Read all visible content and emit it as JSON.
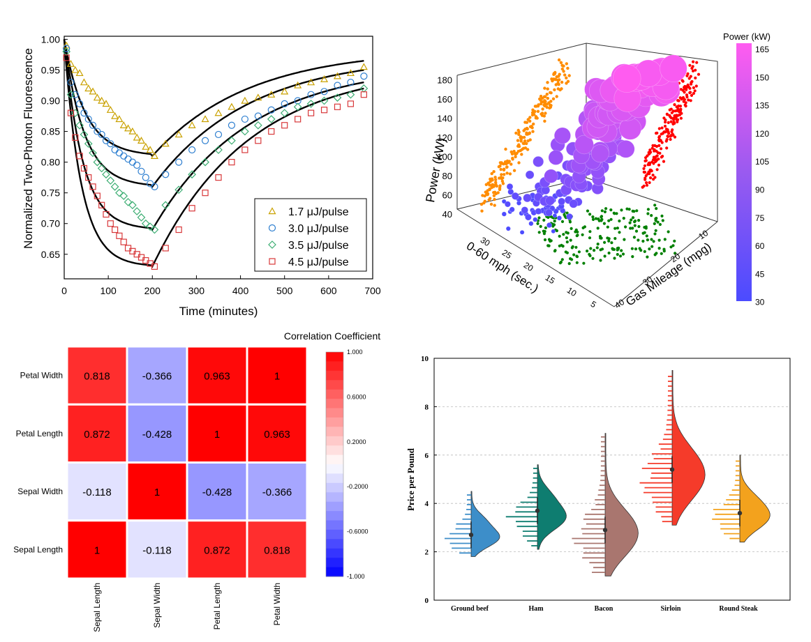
{
  "chart_data": [
    {
      "type": "line",
      "xlabel": "Time (minutes)",
      "ylabel": "Normalized Two-Photon Fluorescence",
      "xlim": [
        0,
        700
      ],
      "ylim": [
        0.61,
        1.005
      ],
      "xticks": [
        "0",
        "100",
        "200",
        "300",
        "400",
        "500",
        "600",
        "700"
      ],
      "yticks": [
        "0.65",
        "0.70",
        "0.75",
        "0.80",
        "0.85",
        "0.90",
        "0.95",
        "1.00"
      ],
      "legend_position": "bottom-right",
      "series": [
        {
          "name": "1.7 μJ/pulse",
          "marker": "triangle",
          "color": "#c9a100",
          "x": [
            5,
            15,
            25,
            35,
            45,
            55,
            65,
            75,
            85,
            95,
            105,
            115,
            125,
            135,
            145,
            155,
            165,
            175,
            185,
            195,
            205,
            230,
            260,
            290,
            320,
            350,
            380,
            410,
            440,
            470,
            500,
            530,
            560,
            590,
            620,
            650,
            680
          ],
          "y": [
            0.99,
            0.96,
            0.95,
            0.945,
            0.93,
            0.92,
            0.915,
            0.905,
            0.9,
            0.895,
            0.885,
            0.875,
            0.87,
            0.86,
            0.855,
            0.85,
            0.84,
            0.835,
            0.825,
            0.82,
            0.81,
            0.83,
            0.845,
            0.86,
            0.87,
            0.88,
            0.89,
            0.9,
            0.905,
            0.91,
            0.915,
            0.925,
            0.93,
            0.935,
            0.94,
            0.945,
            0.955
          ]
        },
        {
          "name": "3.0 μJ/pulse",
          "marker": "circle",
          "color": "#2e7fd0",
          "x": [
            5,
            15,
            25,
            35,
            45,
            55,
            65,
            75,
            85,
            95,
            105,
            115,
            125,
            135,
            145,
            155,
            165,
            175,
            185,
            195,
            205,
            230,
            260,
            290,
            320,
            350,
            380,
            410,
            440,
            470,
            500,
            530,
            560,
            590,
            620,
            650,
            680
          ],
          "y": [
            0.985,
            0.93,
            0.91,
            0.895,
            0.88,
            0.87,
            0.86,
            0.85,
            0.845,
            0.835,
            0.83,
            0.82,
            0.815,
            0.81,
            0.805,
            0.8,
            0.795,
            0.785,
            0.775,
            0.765,
            0.76,
            0.78,
            0.8,
            0.82,
            0.835,
            0.845,
            0.86,
            0.87,
            0.875,
            0.885,
            0.895,
            0.9,
            0.91,
            0.915,
            0.925,
            0.93,
            0.94
          ]
        },
        {
          "name": "3.5 μJ/pulse",
          "marker": "diamond",
          "color": "#3dae73",
          "x": [
            5,
            15,
            25,
            35,
            45,
            55,
            65,
            75,
            85,
            95,
            105,
            115,
            125,
            135,
            145,
            155,
            165,
            175,
            185,
            195,
            205,
            230,
            260,
            290,
            320,
            350,
            380,
            410,
            440,
            470,
            500,
            530,
            560,
            590,
            620,
            650,
            680
          ],
          "y": [
            0.98,
            0.91,
            0.88,
            0.86,
            0.845,
            0.83,
            0.815,
            0.8,
            0.79,
            0.78,
            0.77,
            0.76,
            0.75,
            0.745,
            0.735,
            0.73,
            0.72,
            0.71,
            0.7,
            0.695,
            0.69,
            0.73,
            0.755,
            0.78,
            0.8,
            0.82,
            0.835,
            0.85,
            0.86,
            0.87,
            0.88,
            0.89,
            0.895,
            0.9,
            0.905,
            0.91,
            0.92
          ]
        },
        {
          "name": "4.5 μJ/pulse",
          "marker": "square",
          "color": "#d8383a",
          "x": [
            5,
            15,
            25,
            35,
            45,
            55,
            65,
            75,
            85,
            95,
            105,
            115,
            125,
            135,
            145,
            155,
            165,
            175,
            185,
            195,
            205,
            230,
            260,
            290,
            320,
            350,
            380,
            410,
            440,
            470,
            500,
            530,
            560,
            590,
            620,
            650,
            680
          ],
          "y": [
            0.97,
            0.88,
            0.84,
            0.81,
            0.79,
            0.775,
            0.76,
            0.745,
            0.73,
            0.715,
            0.7,
            0.69,
            0.68,
            0.67,
            0.66,
            0.655,
            0.65,
            0.645,
            0.64,
            0.635,
            0.63,
            0.66,
            0.69,
            0.725,
            0.75,
            0.775,
            0.8,
            0.82,
            0.835,
            0.85,
            0.86,
            0.87,
            0.88,
            0.885,
            0.89,
            0.895,
            0.91
          ]
        }
      ]
    },
    {
      "type": "scatter",
      "xlabel": "0-60 mph (sec.)",
      "ylabel": "Gas Mileage (mpg)",
      "zlabel": "Power (kW)",
      "colorbar_title": "Power (kW)",
      "colorbar_ticks": [
        "165",
        "150",
        "135",
        "120",
        "105",
        "90",
        "75",
        "60",
        "45",
        "30"
      ],
      "x_ticks": [
        "5",
        "10",
        "15",
        "20",
        "25",
        "30"
      ],
      "y_ticks": [
        "10",
        "20",
        "30",
        "40"
      ],
      "z_ticks": [
        "40",
        "60",
        "80",
        "100",
        "120",
        "140",
        "160",
        "180"
      ],
      "colors": {
        "bubble_low": "#4b4bff",
        "bubble_high": "#ff5cf0",
        "projection_xz": "#ff8c00",
        "projection_yz": "#ff0000",
        "projection_xy": "#008000"
      }
    },
    {
      "type": "heatmap",
      "title": "Correlation Coefficient",
      "rows": [
        "Petal Width",
        "Petal Length",
        "Sepal Width",
        "Sepal Length"
      ],
      "columns": [
        "Sepal Length",
        "Sepal Width",
        "Petal Length",
        "Petal Width"
      ],
      "values": [
        [
          "0.818",
          "-0.366",
          "0.963",
          "1"
        ],
        [
          "0.872",
          "-0.428",
          "1",
          "0.963"
        ],
        [
          "-0.118",
          "1",
          "-0.428",
          "-0.366"
        ],
        [
          "1",
          "-0.118",
          "0.872",
          "0.818"
        ]
      ],
      "colorbar_ticks": [
        "1.000",
        "0.6000",
        "0.2000",
        "-0.2000",
        "-0.6000",
        "-1.000"
      ],
      "colors": {
        "low": "#0000ff",
        "mid": "#ffffff",
        "high": "#ff0000"
      }
    },
    {
      "type": "violin",
      "ylabel": "Price per Pound",
      "ylim": [
        0,
        10
      ],
      "yticks": [
        "0",
        "2",
        "4",
        "6",
        "8",
        "10"
      ],
      "categories": [
        "Ground beef",
        "Ham",
        "Bacon",
        "Sirloin",
        "Round Steak"
      ],
      "medians": [
        2.7,
        3.7,
        2.9,
        5.4,
        3.6
      ],
      "ranges": [
        [
          1.8,
          4.5
        ],
        [
          2.1,
          5.6
        ],
        [
          1.0,
          6.9
        ],
        [
          3.1,
          9.5
        ],
        [
          2.4,
          6.0
        ]
      ],
      "colors": [
        "#3d8ec9",
        "#0e7d70",
        "#a9766f",
        "#f53b2a",
        "#f3a21d"
      ]
    }
  ]
}
